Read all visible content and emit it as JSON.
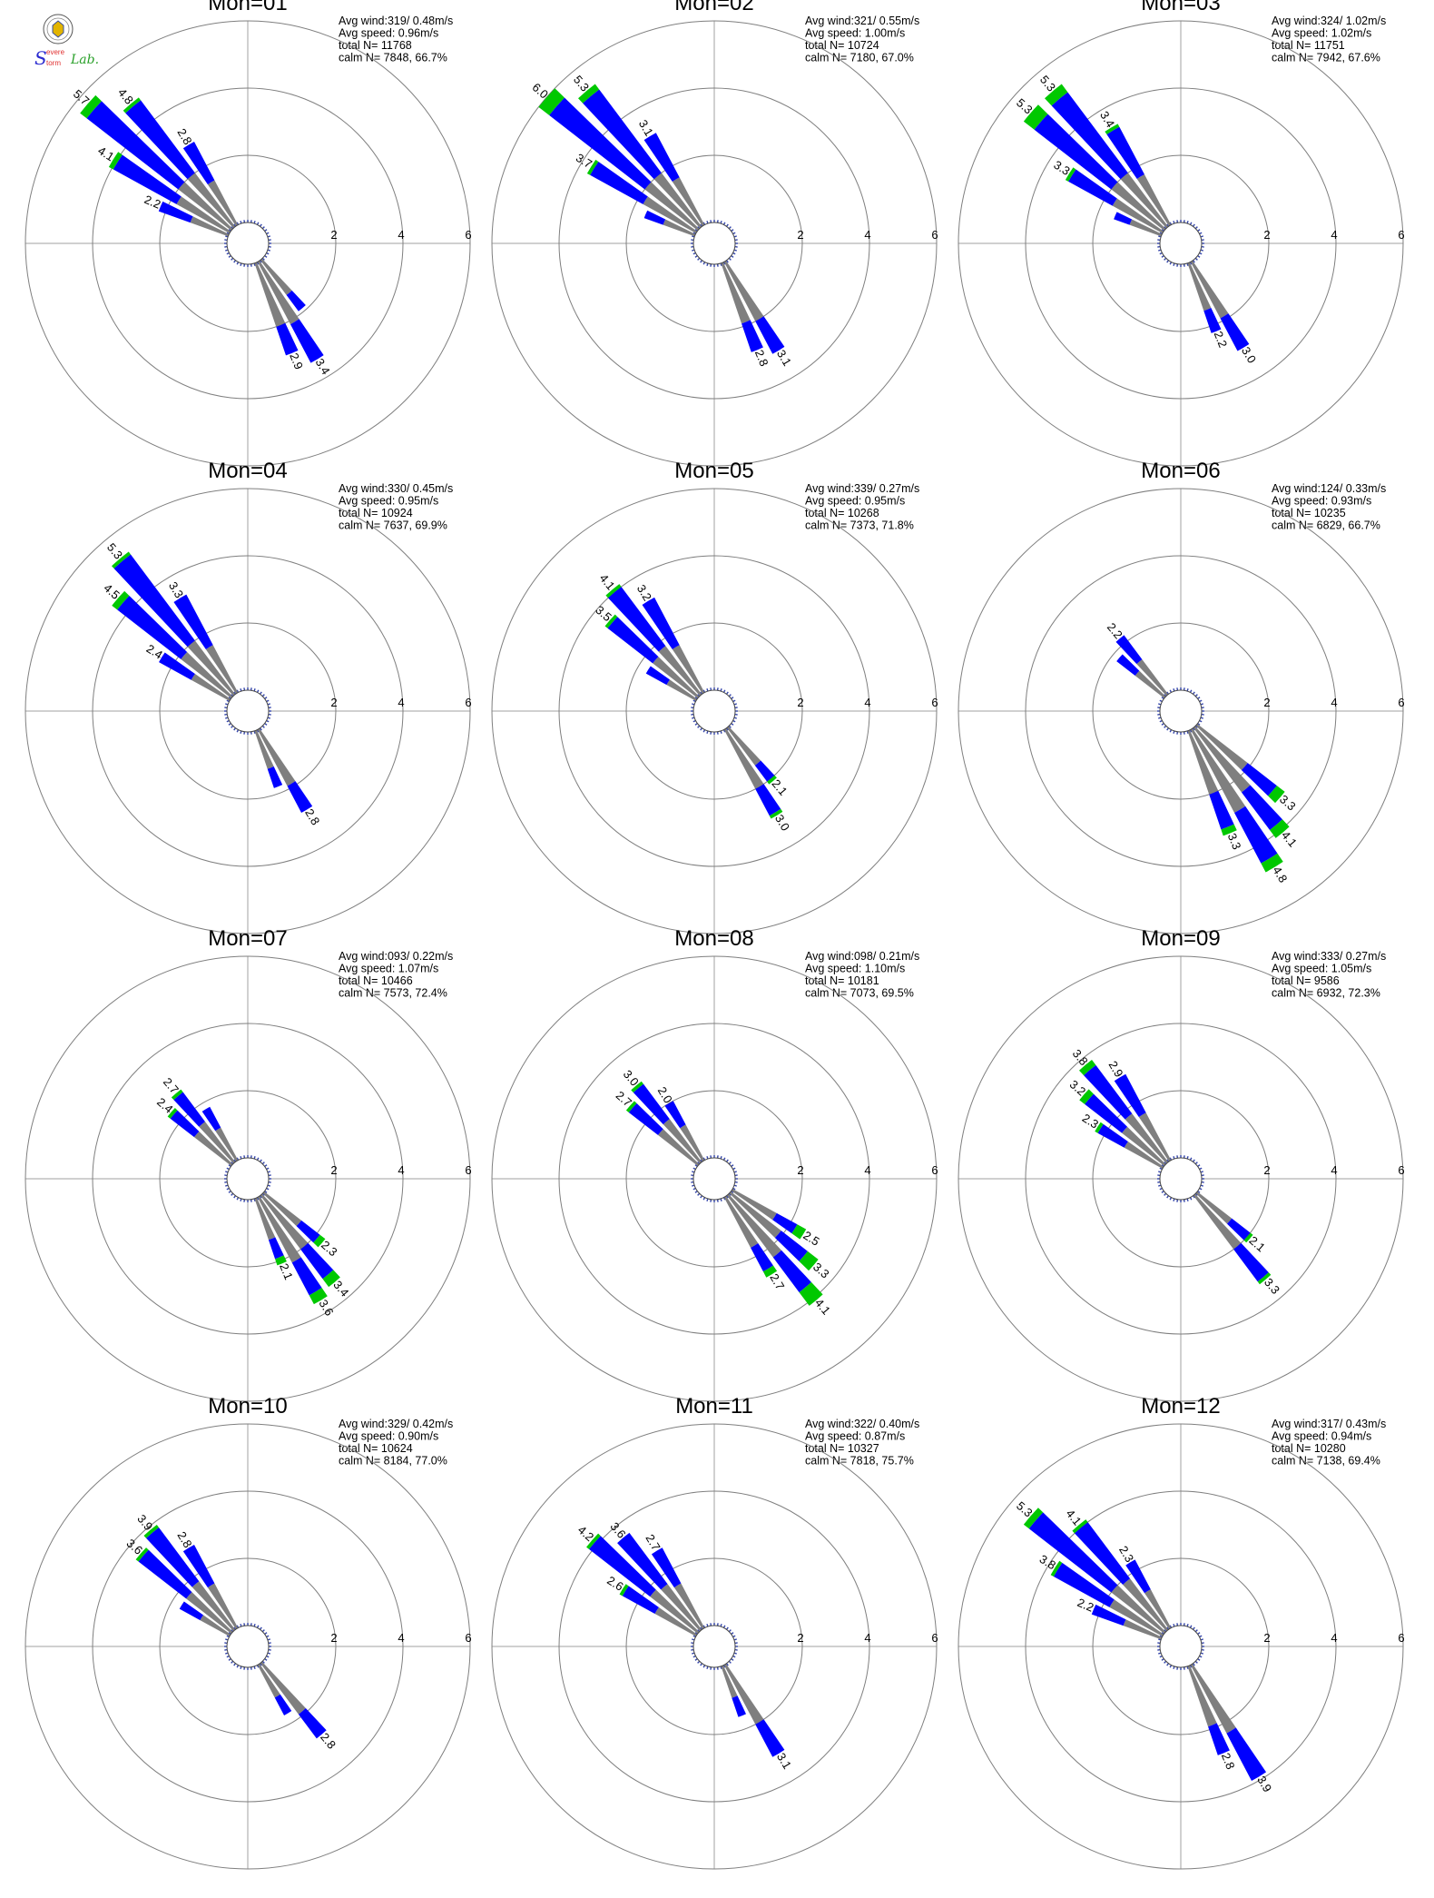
{
  "logo": {
    "text_lines": [
      "S",
      "evere",
      "torm",
      "Lab."
    ]
  },
  "colors": {
    "low": "#7f7f7f",
    "mid": "#0000ff",
    "high": "#00c800",
    "ring": "#7f7f7f",
    "axis": "#a0a0a0"
  },
  "ring_labels": [
    "2",
    "4",
    "6"
  ],
  "chart_data": [
    {
      "type": "wind-rose",
      "title": "Mon=01",
      "rmax": 6,
      "rings": [
        2,
        4,
        6
      ],
      "stats": [
        "Avg wind:319/ 0.48m/s",
        "Avg speed: 0.96m/s",
        "total N=      11768",
        "calm N=   7848,  66.7%"
      ],
      "spokes": [
        {
          "dir": 311,
          "total": 5.7,
          "label": "5.7",
          "comp": [
            2.0,
            3.45,
            0.25
          ]
        },
        {
          "dir": 320,
          "total": 4.8,
          "label": "4.8",
          "comp": [
            2.0,
            2.7,
            0.1
          ]
        },
        {
          "dir": 302,
          "total": 4.1,
          "label": "4.1",
          "comp": [
            1.8,
            2.15,
            0.15
          ]
        },
        {
          "dir": 329,
          "total": 2.8,
          "label": "2.8",
          "comp": [
            1.5,
            1.3
          ]
        },
        {
          "dir": 293,
          "total": 2.2,
          "label": "2.2",
          "comp": [
            1.2,
            1.0
          ]
        },
        {
          "dir": 149,
          "total": 3.4,
          "label": "3.4",
          "comp": [
            2.1,
            1.3
          ]
        },
        {
          "dir": 158,
          "total": 2.9,
          "label": "2.9",
          "comp": [
            2.0,
            0.9
          ]
        },
        {
          "dir": 140,
          "total": 1.9,
          "comp": [
            1.3,
            0.6
          ]
        }
      ]
    },
    {
      "type": "wind-rose",
      "title": "Mon=02",
      "rmax": 6,
      "rings": [
        2,
        4,
        6
      ],
      "stats": [
        "Avg wind:321/ 0.55m/s",
        "Avg speed: 1.00m/s",
        "total N=      10724",
        "calm N=   7180,  67.0%"
      ],
      "spokes": [
        {
          "dir": 311,
          "total": 6.0,
          "label": "6.0",
          "comp": [
            2.0,
            3.6,
            0.4
          ]
        },
        {
          "dir": 320,
          "total": 5.3,
          "label": "5.3",
          "comp": [
            2.0,
            3.1,
            0.2
          ]
        },
        {
          "dir": 302,
          "total": 3.7,
          "label": "3.7",
          "comp": [
            1.8,
            1.8,
            0.1
          ]
        },
        {
          "dir": 329,
          "total": 3.1,
          "label": "3.1",
          "comp": [
            1.6,
            1.5
          ]
        },
        {
          "dir": 149,
          "total": 3.1,
          "label": "3.1",
          "comp": [
            2.0,
            1.1
          ]
        },
        {
          "dir": 158,
          "total": 2.8,
          "label": "2.8",
          "comp": [
            1.9,
            0.9
          ]
        },
        {
          "dir": 293,
          "total": 1.6,
          "comp": [
            1.0,
            0.6
          ]
        }
      ]
    },
    {
      "type": "wind-rose",
      "title": "Mon=03",
      "rmax": 6,
      "rings": [
        2,
        4,
        6
      ],
      "stats": [
        "Avg wind:324/ 1.02m/s",
        "Avg speed: 1.02m/s",
        "total N=      11751",
        "calm N=   7942,  67.6%"
      ],
      "spokes": [
        {
          "dir": 320,
          "total": 5.3,
          "label": "5.3",
          "comp": [
            2.0,
            3.0,
            0.3
          ]
        },
        {
          "dir": 311,
          "total": 5.3,
          "label": "5.3",
          "comp": [
            2.0,
            2.9,
            0.4
          ]
        },
        {
          "dir": 329,
          "total": 3.4,
          "label": "3.4",
          "comp": [
            1.7,
            1.6,
            0.1
          ]
        },
        {
          "dir": 302,
          "total": 3.3,
          "label": "3.3",
          "comp": [
            1.7,
            1.5,
            0.1
          ]
        },
        {
          "dir": 149,
          "total": 3.0,
          "label": "3.0",
          "comp": [
            1.9,
            1.1
          ]
        },
        {
          "dir": 158,
          "total": 2.2,
          "label": "2.2",
          "comp": [
            1.5,
            0.7
          ]
        },
        {
          "dir": 293,
          "total": 1.5,
          "comp": [
            1.0,
            0.5
          ]
        }
      ]
    },
    {
      "type": "wind-rose",
      "title": "Mon=04",
      "rmax": 6,
      "rings": [
        2,
        4,
        6
      ],
      "stats": [
        "Avg wind:330/ 0.45m/s",
        "Avg speed: 0.95m/s",
        "total N=      10924",
        "calm N=   7637,  69.9%"
      ],
      "spokes": [
        {
          "dir": 320,
          "total": 5.3,
          "label": "5.3",
          "comp": [
            2.0,
            3.2,
            0.1
          ]
        },
        {
          "dir": 311,
          "total": 4.5,
          "label": "4.5",
          "comp": [
            1.9,
            2.4,
            0.2
          ]
        },
        {
          "dir": 329,
          "total": 3.3,
          "label": "3.3",
          "comp": [
            1.6,
            1.7
          ]
        },
        {
          "dir": 302,
          "total": 2.4,
          "label": "2.4",
          "comp": [
            1.3,
            1.1
          ]
        },
        {
          "dir": 149,
          "total": 2.8,
          "label": "2.8",
          "comp": [
            1.9,
            0.9
          ]
        },
        {
          "dir": 158,
          "total": 1.8,
          "comp": [
            1.2,
            0.6
          ]
        }
      ]
    },
    {
      "type": "wind-rose",
      "title": "Mon=05",
      "rmax": 6,
      "rings": [
        2,
        4,
        6
      ],
      "stats": [
        "Avg wind:339/ 0.27m/s",
        "Avg speed: 0.95m/s",
        "total N=      10268",
        "calm N=   7373,  71.8%"
      ],
      "spokes": [
        {
          "dir": 320,
          "total": 4.1,
          "label": "4.1",
          "comp": [
            1.8,
            2.2,
            0.1
          ]
        },
        {
          "dir": 311,
          "total": 3.5,
          "label": "3.5",
          "comp": [
            1.7,
            1.7,
            0.1
          ]
        },
        {
          "dir": 329,
          "total": 3.2,
          "label": "3.2",
          "comp": [
            1.6,
            1.6
          ]
        },
        {
          "dir": 302,
          "total": 1.7,
          "comp": [
            1.0,
            0.7
          ]
        },
        {
          "dir": 149,
          "total": 3.0,
          "label": "3.0",
          "comp": [
            2.0,
            0.9,
            0.1
          ]
        },
        {
          "dir": 140,
          "total": 2.1,
          "label": "2.1",
          "comp": [
            1.4,
            0.6,
            0.1
          ]
        }
      ]
    },
    {
      "type": "wind-rose",
      "title": "Mon=06",
      "rmax": 6,
      "rings": [
        2,
        4,
        6
      ],
      "stats": [
        "Avg wind:124/ 0.33m/s",
        "Avg speed: 0.93m/s",
        "total N=      10235",
        "calm N=   6829,  66.7%"
      ],
      "spokes": [
        {
          "dir": 320,
          "total": 2.2,
          "label": "2.2",
          "comp": [
            1.3,
            0.9
          ]
        },
        {
          "dir": 311,
          "total": 1.8,
          "comp": [
            1.1,
            0.7
          ]
        },
        {
          "dir": 149,
          "total": 4.8,
          "label": "4.8",
          "comp": [
            2.8,
            1.7,
            0.3
          ]
        },
        {
          "dir": 140,
          "total": 4.1,
          "label": "4.1",
          "comp": [
            2.4,
            1.4,
            0.3
          ]
        },
        {
          "dir": 158,
          "total": 3.3,
          "label": "3.3",
          "comp": [
            2.0,
            1.1,
            0.2
          ]
        },
        {
          "dir": 131,
          "total": 3.3,
          "label": "3.3",
          "comp": [
            1.9,
            1.1,
            0.3
          ]
        }
      ]
    },
    {
      "type": "wind-rose",
      "title": "Mon=07",
      "rmax": 6,
      "rings": [
        2,
        4,
        6
      ],
      "stats": [
        "Avg wind:093/ 0.22m/s",
        "Avg speed: 1.07m/s",
        "total N=      10466",
        "calm N=   7573,  72.4%"
      ],
      "spokes": [
        {
          "dir": 320,
          "total": 2.7,
          "label": "2.7",
          "comp": [
            1.5,
            1.1,
            0.1
          ]
        },
        {
          "dir": 311,
          "total": 2.4,
          "label": "2.4",
          "comp": [
            1.4,
            0.9,
            0.1
          ]
        },
        {
          "dir": 329,
          "total": 1.8,
          "comp": [
            1.1,
            0.7
          ]
        },
        {
          "dir": 149,
          "total": 3.6,
          "label": "3.6",
          "comp": [
            2.2,
            1.1,
            0.3
          ]
        },
        {
          "dir": 140,
          "total": 3.4,
          "label": "3.4",
          "comp": [
            2.0,
            1.1,
            0.3
          ]
        },
        {
          "dir": 131,
          "total": 2.3,
          "label": "2.3",
          "comp": [
            1.4,
            0.7,
            0.2
          ]
        },
        {
          "dir": 158,
          "total": 2.1,
          "label": "2.1",
          "comp": [
            1.3,
            0.6,
            0.2
          ]
        }
      ]
    },
    {
      "type": "wind-rose",
      "title": "Mon=08",
      "rmax": 6,
      "rings": [
        2,
        4,
        6
      ],
      "stats": [
        "Avg wind:098/ 0.21m/s",
        "Avg speed: 1.10m/s",
        "total N=      10181",
        "calm N=   7073,  69.5%"
      ],
      "spokes": [
        {
          "dir": 320,
          "total": 3.0,
          "label": "3.0",
          "comp": [
            1.6,
            1.3,
            0.1
          ]
        },
        {
          "dir": 311,
          "total": 2.7,
          "label": "2.7",
          "comp": [
            1.5,
            1.1,
            0.1
          ]
        },
        {
          "dir": 329,
          "total": 2.0,
          "label": "2.0",
          "comp": [
            1.2,
            0.8
          ]
        },
        {
          "dir": 140,
          "total": 4.1,
          "label": "4.1",
          "comp": [
            2.3,
            1.3,
            0.5
          ]
        },
        {
          "dir": 131,
          "total": 3.3,
          "label": "3.3",
          "comp": [
            1.9,
            1.0,
            0.4
          ]
        },
        {
          "dir": 122,
          "total": 2.5,
          "label": "2.5",
          "comp": [
            1.5,
            0.7,
            0.3
          ]
        },
        {
          "dir": 149,
          "total": 2.7,
          "label": "2.7",
          "comp": [
            1.7,
            0.8,
            0.2
          ]
        }
      ]
    },
    {
      "type": "wind-rose",
      "title": "Mon=09",
      "rmax": 6,
      "rings": [
        2,
        4,
        6
      ],
      "stats": [
        "Avg wind:333/ 0.27m/s",
        "Avg speed: 1.05m/s",
        "total N=       9586",
        "calm N=   6932,  72.3%"
      ],
      "spokes": [
        {
          "dir": 320,
          "total": 3.8,
          "label": "3.8",
          "comp": [
            1.8,
            1.8,
            0.2
          ]
        },
        {
          "dir": 311,
          "total": 3.2,
          "label": "3.2",
          "comp": [
            1.6,
            1.4,
            0.2
          ]
        },
        {
          "dir": 329,
          "total": 2.9,
          "label": "2.9",
          "comp": [
            1.6,
            1.3
          ]
        },
        {
          "dir": 302,
          "total": 2.3,
          "label": "2.3",
          "comp": [
            1.3,
            0.9,
            0.1
          ]
        },
        {
          "dir": 140,
          "total": 3.3,
          "label": "3.3",
          "comp": [
            2.0,
            1.2,
            0.1
          ]
        },
        {
          "dir": 131,
          "total": 2.1,
          "label": "2.1",
          "comp": [
            1.3,
            0.7,
            0.1
          ]
        }
      ]
    },
    {
      "type": "wind-rose",
      "title": "Mon=10",
      "rmax": 6,
      "rings": [
        2,
        4,
        6
      ],
      "stats": [
        "Avg wind:329/ 0.42m/s",
        "Avg speed: 0.90m/s",
        "total N=      10624",
        "calm N=   8184,  77.0%"
      ],
      "spokes": [
        {
          "dir": 320,
          "total": 3.9,
          "label": "3.9",
          "comp": [
            1.8,
            2.0,
            0.1
          ]
        },
        {
          "dir": 311,
          "total": 3.6,
          "label": "3.6",
          "comp": [
            1.7,
            1.8,
            0.1
          ]
        },
        {
          "dir": 329,
          "total": 2.8,
          "label": "2.8",
          "comp": [
            1.5,
            1.3
          ]
        },
        {
          "dir": 302,
          "total": 1.7,
          "comp": [
            1.0,
            0.7
          ]
        },
        {
          "dir": 140,
          "total": 2.8,
          "label": "2.8",
          "comp": [
            1.9,
            0.9
          ]
        },
        {
          "dir": 149,
          "total": 1.7,
          "comp": [
            1.1,
            0.6
          ]
        }
      ]
    },
    {
      "type": "wind-rose",
      "title": "Mon=11",
      "rmax": 6,
      "rings": [
        2,
        4,
        6
      ],
      "stats": [
        "Avg wind:322/ 0.40m/s",
        "Avg speed: 0.87m/s",
        "total N=      10327",
        "calm N=   7818,  75.7%"
      ],
      "spokes": [
        {
          "dir": 311,
          "total": 4.2,
          "label": "4.2",
          "comp": [
            1.8,
            2.3,
            0.1
          ]
        },
        {
          "dir": 320,
          "total": 3.6,
          "label": "3.6",
          "comp": [
            1.7,
            1.9
          ]
        },
        {
          "dir": 329,
          "total": 2.7,
          "label": "2.7",
          "comp": [
            1.5,
            1.2
          ]
        },
        {
          "dir": 302,
          "total": 2.6,
          "label": "2.6",
          "comp": [
            1.4,
            1.1,
            0.1
          ]
        },
        {
          "dir": 149,
          "total": 3.1,
          "label": "3.1",
          "comp": [
            2.0,
            1.1
          ]
        },
        {
          "dir": 158,
          "total": 1.6,
          "comp": [
            1.0,
            0.6
          ]
        }
      ]
    },
    {
      "type": "wind-rose",
      "title": "Mon=12",
      "rmax": 6,
      "rings": [
        2,
        4,
        6
      ],
      "stats": [
        "Avg wind:317/ 0.43m/s",
        "Avg speed: 0.94m/s",
        "total N=      10280",
        "calm N=   7138,  69.4%"
      ],
      "spokes": [
        {
          "dir": 311,
          "total": 5.3,
          "label": "5.3",
          "comp": [
            2.0,
            3.1,
            0.2
          ]
        },
        {
          "dir": 320,
          "total": 4.1,
          "label": "4.1",
          "comp": [
            1.9,
            2.1,
            0.1
          ]
        },
        {
          "dir": 302,
          "total": 3.8,
          "label": "3.8",
          "comp": [
            1.8,
            1.9,
            0.1
          ]
        },
        {
          "dir": 329,
          "total": 2.3,
          "label": "2.3",
          "comp": [
            1.3,
            1.0
          ]
        },
        {
          "dir": 293,
          "total": 2.2,
          "label": "2.2",
          "comp": [
            1.2,
            1.0
          ]
        },
        {
          "dir": 149,
          "total": 3.9,
          "label": "3.9",
          "comp": [
            2.3,
            1.6
          ]
        },
        {
          "dir": 158,
          "total": 2.8,
          "label": "2.8",
          "comp": [
            1.9,
            0.9
          ]
        }
      ]
    }
  ]
}
